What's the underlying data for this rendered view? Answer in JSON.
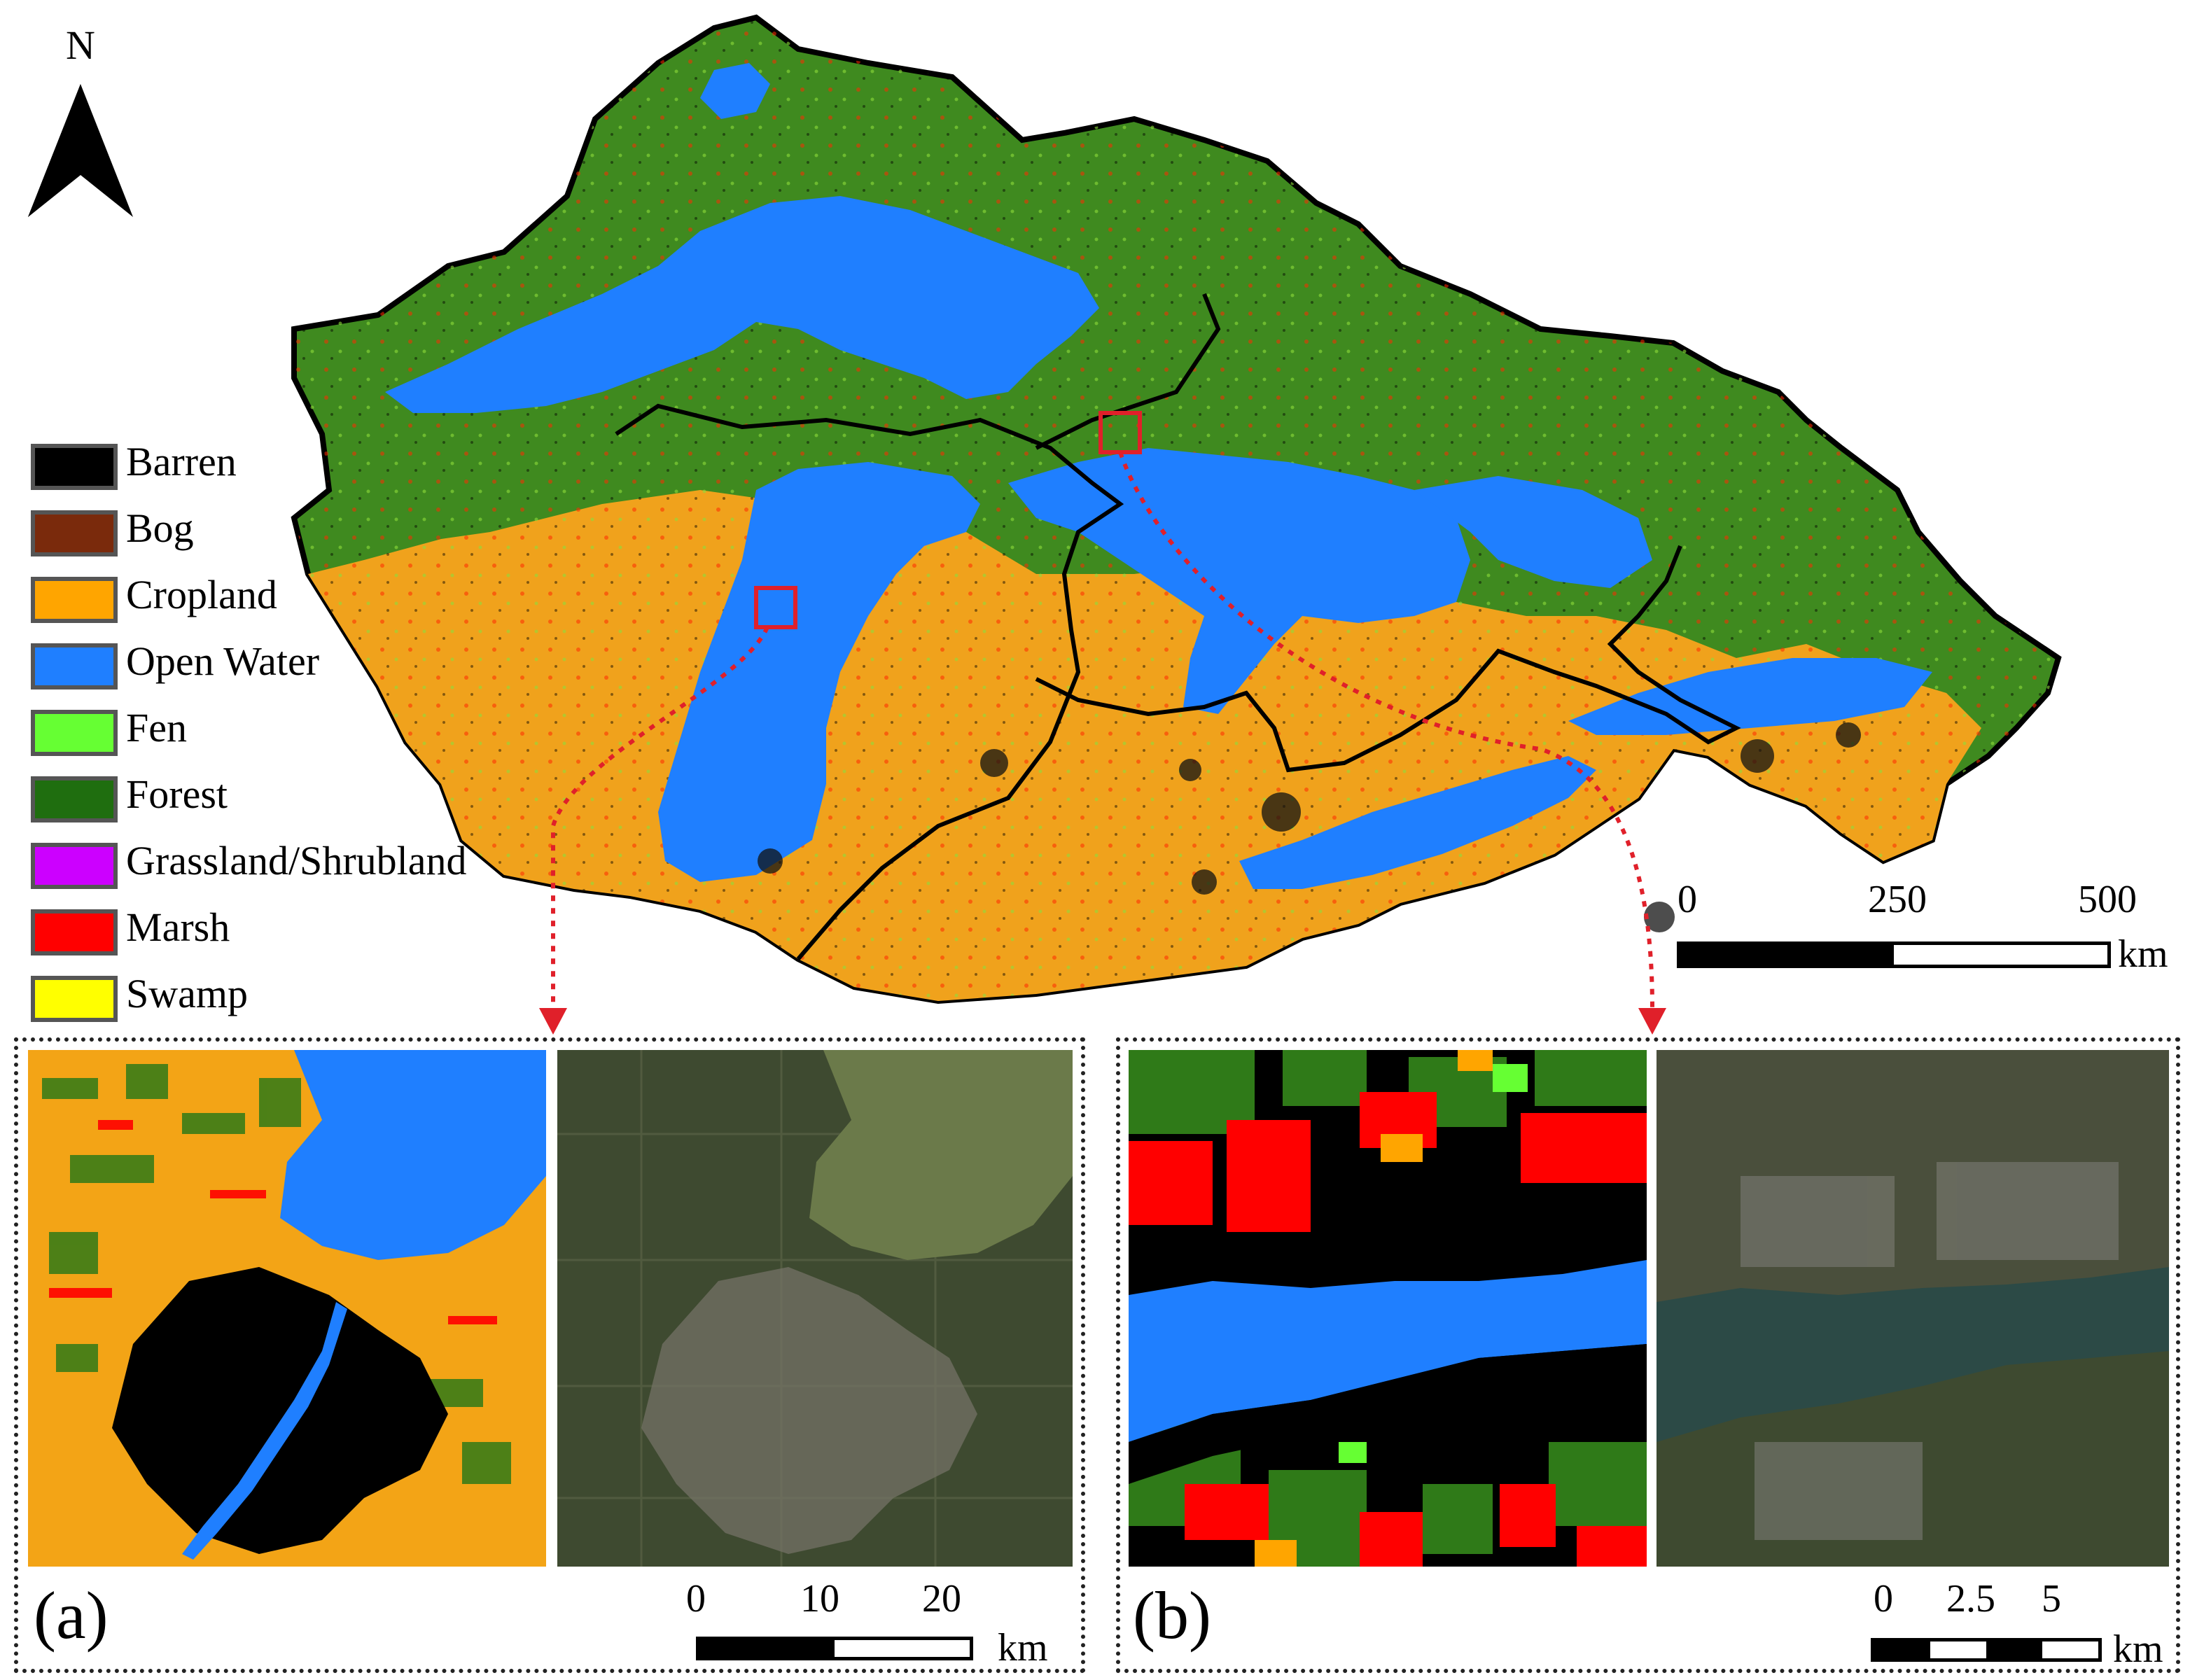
{
  "north_arrow": {
    "label": "N"
  },
  "legend": [
    {
      "label": "Barren",
      "color": "#000000"
    },
    {
      "label": "Bog",
      "color": "#7a2a0c"
    },
    {
      "label": "Cropland",
      "color": "#ffa500"
    },
    {
      "label": "Open Water",
      "color": "#1f7fff"
    },
    {
      "label": "Fen",
      "color": "#66ff33"
    },
    {
      "label": "Forest",
      "color": "#1f6e0f"
    },
    {
      "label": "Grassland/Shrubland",
      "color": "#cc00ff"
    },
    {
      "label": "Marsh",
      "color": "#ff0000"
    },
    {
      "label": "Swamp",
      "color": "#ffff00"
    }
  ],
  "main_scale": {
    "ticks": [
      "0",
      "250",
      "500"
    ],
    "unit": "km"
  },
  "panel_a": {
    "letter": "(a)",
    "ticks": [
      "0",
      "10",
      "20"
    ],
    "unit": "km"
  },
  "panel_b": {
    "letter": "(b)",
    "ticks": [
      "0",
      "2.5",
      "5"
    ],
    "unit": "km"
  },
  "colors": {
    "callout": "#e0202a",
    "water": "#1f7fff",
    "cropland": "#ffa500",
    "forest": "#2f7a18",
    "barren": "#000000"
  }
}
